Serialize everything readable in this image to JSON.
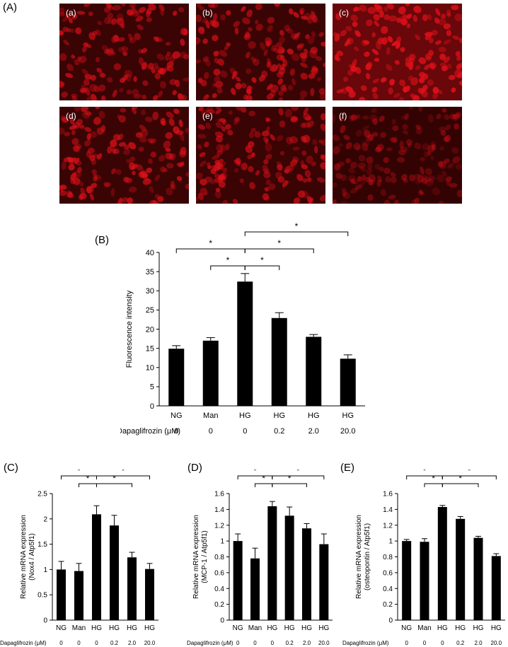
{
  "panels": {
    "A": "(A)",
    "B": "(B)",
    "C": "(C)",
    "D": "(D)",
    "E": "(E)"
  },
  "micrographs": [
    {
      "label": "(a)",
      "brightness": 0.75
    },
    {
      "label": "(b)",
      "brightness": 0.78
    },
    {
      "label": "(c)",
      "brightness": 1.0
    },
    {
      "label": "(d)",
      "brightness": 0.8
    },
    {
      "label": "(e)",
      "brightness": 0.75
    },
    {
      "label": "(f)",
      "brightness": 0.45
    }
  ],
  "colors": {
    "bar": "#000000",
    "fluorescence": "#e0101a",
    "background_dark": "#2a0303"
  },
  "chart_data": [
    {
      "id": "B",
      "type": "bar",
      "categories": [
        "NG",
        "Man",
        "HG",
        "HG",
        "HG",
        "HG"
      ],
      "dose_label": "Dapaglifrozin (μM)",
      "doses": [
        "0",
        "0",
        "0",
        "0.2",
        "2.0",
        "20.0"
      ],
      "values": [
        14.9,
        17.0,
        32.4,
        22.9,
        18.0,
        12.3
      ],
      "errors": [
        0.8,
        0.8,
        2.1,
        1.4,
        0.6,
        1.0
      ],
      "ylabel": "Fluorescence intensity",
      "ylim": [
        0,
        40
      ],
      "yticks": [
        "0",
        "5",
        "10",
        "15",
        "20",
        "25",
        "30",
        "35",
        "40"
      ],
      "significance": [
        {
          "from": 0,
          "to": 2,
          "level": 1,
          "text": "*"
        },
        {
          "from": 1,
          "to": 2,
          "level": 0,
          "text": "*"
        },
        {
          "from": 2,
          "to": 3,
          "level": 0,
          "text": "*"
        },
        {
          "from": 2,
          "to": 4,
          "level": 1,
          "text": "*"
        },
        {
          "from": 2,
          "to": 5,
          "level": 2,
          "text": "*"
        }
      ]
    },
    {
      "id": "C",
      "type": "bar",
      "categories": [
        "NG",
        "Man",
        "HG",
        "HG",
        "HG",
        "HG"
      ],
      "dose_label": "Dapaglifrozin (μM)",
      "doses": [
        "0",
        "0",
        "0",
        "0.2",
        "2.0",
        "20.0"
      ],
      "values": [
        1.0,
        0.97,
        2.09,
        1.87,
        1.24,
        1.01
      ],
      "errors": [
        0.16,
        0.15,
        0.17,
        0.2,
        0.1,
        0.11
      ],
      "ylabel": "Relative mRNA expression",
      "ylabel2": "(Nox4 / Atp5f1)",
      "ylim": [
        0,
        2.5
      ],
      "yticks": [
        "0",
        "0.5",
        "1",
        "1.5",
        "2",
        "2.5"
      ],
      "significance": [
        {
          "from": 0,
          "to": 2,
          "level": 1,
          "text": "*"
        },
        {
          "from": 1,
          "to": 2,
          "level": 0,
          "text": "*"
        },
        {
          "from": 2,
          "to": 4,
          "level": 0,
          "text": "*"
        },
        {
          "from": 2,
          "to": 5,
          "level": 1,
          "text": "*"
        }
      ]
    },
    {
      "id": "D",
      "type": "bar",
      "categories": [
        "NG",
        "Man",
        "HG",
        "HG",
        "HG",
        "HG"
      ],
      "dose_label": "Dapaglifrozin (μM)",
      "doses": [
        "0",
        "0",
        "0",
        "0.2",
        "2.0",
        "20.0"
      ],
      "values": [
        1.0,
        0.78,
        1.44,
        1.32,
        1.16,
        0.96
      ],
      "errors": [
        0.09,
        0.13,
        0.06,
        0.11,
        0.06,
        0.13
      ],
      "ylabel": "Relative mRNA expression",
      "ylabel2": "(MCP-1 / Atp5f1)",
      "ylim": [
        0,
        1.6
      ],
      "yticks": [
        "0",
        "0.2",
        "0.4",
        "0.6",
        "0.8",
        "1",
        "1.2",
        "1.4",
        "1.6"
      ],
      "significance": [
        {
          "from": 0,
          "to": 2,
          "level": 1,
          "text": "*"
        },
        {
          "from": 1,
          "to": 2,
          "level": 0,
          "text": "*"
        },
        {
          "from": 2,
          "to": 4,
          "level": 0,
          "text": "*"
        },
        {
          "from": 2,
          "to": 5,
          "level": 1,
          "text": "*"
        }
      ]
    },
    {
      "id": "E",
      "type": "bar",
      "categories": [
        "NG",
        "Man",
        "HG",
        "HG",
        "HG",
        "HG"
      ],
      "dose_label": "Dapaglifrozin (μM)",
      "doses": [
        "0",
        "0",
        "0",
        "0.2",
        "2.0",
        "20.0"
      ],
      "values": [
        1.0,
        0.99,
        1.43,
        1.28,
        1.04,
        0.81
      ],
      "errors": [
        0.02,
        0.04,
        0.02,
        0.03,
        0.02,
        0.03
      ],
      "ylabel": "Relative mRNA expression",
      "ylabel2": "(osteopontin / Atp5f1)",
      "ylim": [
        0,
        1.6
      ],
      "yticks": [
        "0",
        "0.2",
        "0.4",
        "0.6",
        "0.8",
        "1",
        "1.2",
        "1.4",
        "1.6"
      ],
      "significance": [
        {
          "from": 0,
          "to": 2,
          "level": 1,
          "text": "*"
        },
        {
          "from": 1,
          "to": 2,
          "level": 0,
          "text": "*"
        },
        {
          "from": 2,
          "to": 4,
          "level": 0,
          "text": "*"
        },
        {
          "from": 2,
          "to": 5,
          "level": 1,
          "text": "*"
        }
      ]
    }
  ]
}
